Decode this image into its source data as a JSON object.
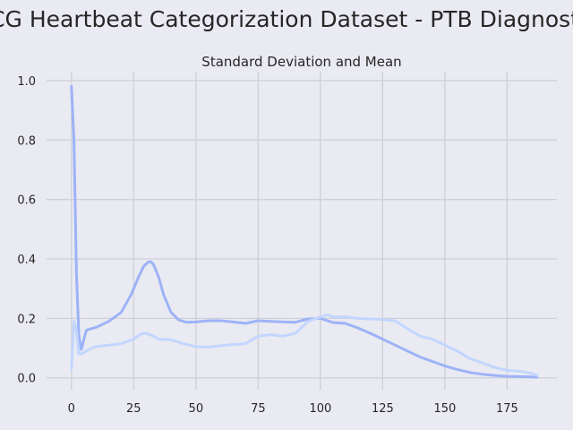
{
  "figure": {
    "suptitle": "ECG Heartbeat Categorization Dataset - PTB Diagnostic"
  },
  "chart_data": {
    "type": "line",
    "title": "Standard Deviation and Mean",
    "xlabel": "",
    "ylabel": "",
    "xlim": [
      -10,
      195
    ],
    "ylim": [
      -0.04,
      1.03
    ],
    "xticks": [
      0,
      25,
      50,
      75,
      100,
      125,
      150,
      175
    ],
    "yticks": [
      0.0,
      0.2,
      0.4,
      0.6,
      0.8,
      1.0
    ],
    "xtick_labels": [
      "0",
      "25",
      "50",
      "75",
      "100",
      "125",
      "150",
      "175"
    ],
    "ytick_labels": [
      "0.0",
      "0.2",
      "0.4",
      "0.6",
      "0.8",
      "1.0"
    ],
    "grid": true,
    "series": [
      {
        "color": "#9db3f7",
        "x": [
          0,
          1,
          2,
          3,
          4,
          5,
          6,
          10,
          15,
          20,
          24,
          27,
          29,
          31,
          32,
          33,
          35,
          37,
          40,
          43,
          46,
          50,
          55,
          60,
          65,
          70,
          75,
          80,
          85,
          90,
          95,
          100,
          105,
          110,
          115,
          120,
          125,
          130,
          135,
          140,
          145,
          150,
          155,
          160,
          165,
          170,
          175,
          180,
          185,
          187
        ],
        "values": [
          0.98,
          0.8,
          0.35,
          0.14,
          0.095,
          0.13,
          0.16,
          0.17,
          0.19,
          0.22,
          0.28,
          0.34,
          0.375,
          0.39,
          0.39,
          0.38,
          0.34,
          0.28,
          0.22,
          0.195,
          0.187,
          0.188,
          0.192,
          0.192,
          0.188,
          0.183,
          0.192,
          0.19,
          0.188,
          0.187,
          0.198,
          0.2,
          0.186,
          0.183,
          0.168,
          0.15,
          0.13,
          0.11,
          0.09,
          0.07,
          0.055,
          0.04,
          0.028,
          0.018,
          0.012,
          0.008,
          0.005,
          0.004,
          0.003,
          0.002
        ]
      },
      {
        "color": "#c2d6ff",
        "x": [
          0,
          1,
          2,
          3,
          4,
          5,
          6,
          8,
          10,
          15,
          20,
          25,
          28,
          30,
          33,
          35,
          40,
          45,
          50,
          55,
          60,
          65,
          70,
          75,
          80,
          85,
          90,
          95,
          100,
          103,
          105,
          110,
          115,
          120,
          125,
          130,
          135,
          140,
          145,
          150,
          155,
          160,
          165,
          170,
          175,
          180,
          185,
          187
        ],
        "values": [
          0.03,
          0.19,
          0.16,
          0.08,
          0.08,
          0.085,
          0.09,
          0.1,
          0.105,
          0.11,
          0.115,
          0.13,
          0.148,
          0.15,
          0.14,
          0.13,
          0.128,
          0.115,
          0.105,
          0.103,
          0.108,
          0.112,
          0.115,
          0.14,
          0.145,
          0.14,
          0.15,
          0.19,
          0.205,
          0.212,
          0.205,
          0.205,
          0.2,
          0.198,
          0.196,
          0.192,
          0.165,
          0.14,
          0.13,
          0.11,
          0.09,
          0.065,
          0.05,
          0.035,
          0.025,
          0.022,
          0.015,
          0.008
        ]
      }
    ]
  }
}
